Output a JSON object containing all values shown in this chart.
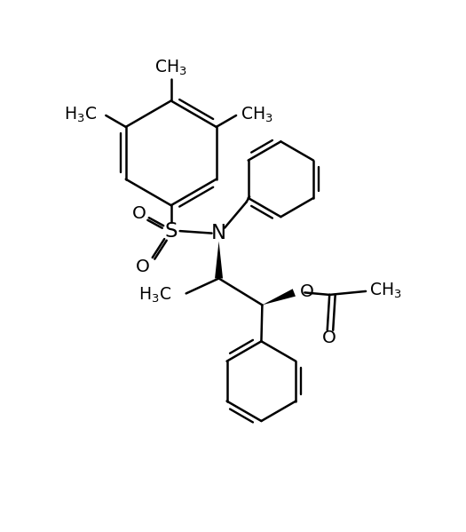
{
  "background_color": "#ffffff",
  "line_color": "#000000",
  "lw": 1.8,
  "fs": 13.5,
  "figsize": [
    5.25,
    5.99
  ],
  "dpi": 100,
  "xlim": [
    0,
    10.5
  ],
  "ylim": [
    0,
    11.8
  ]
}
